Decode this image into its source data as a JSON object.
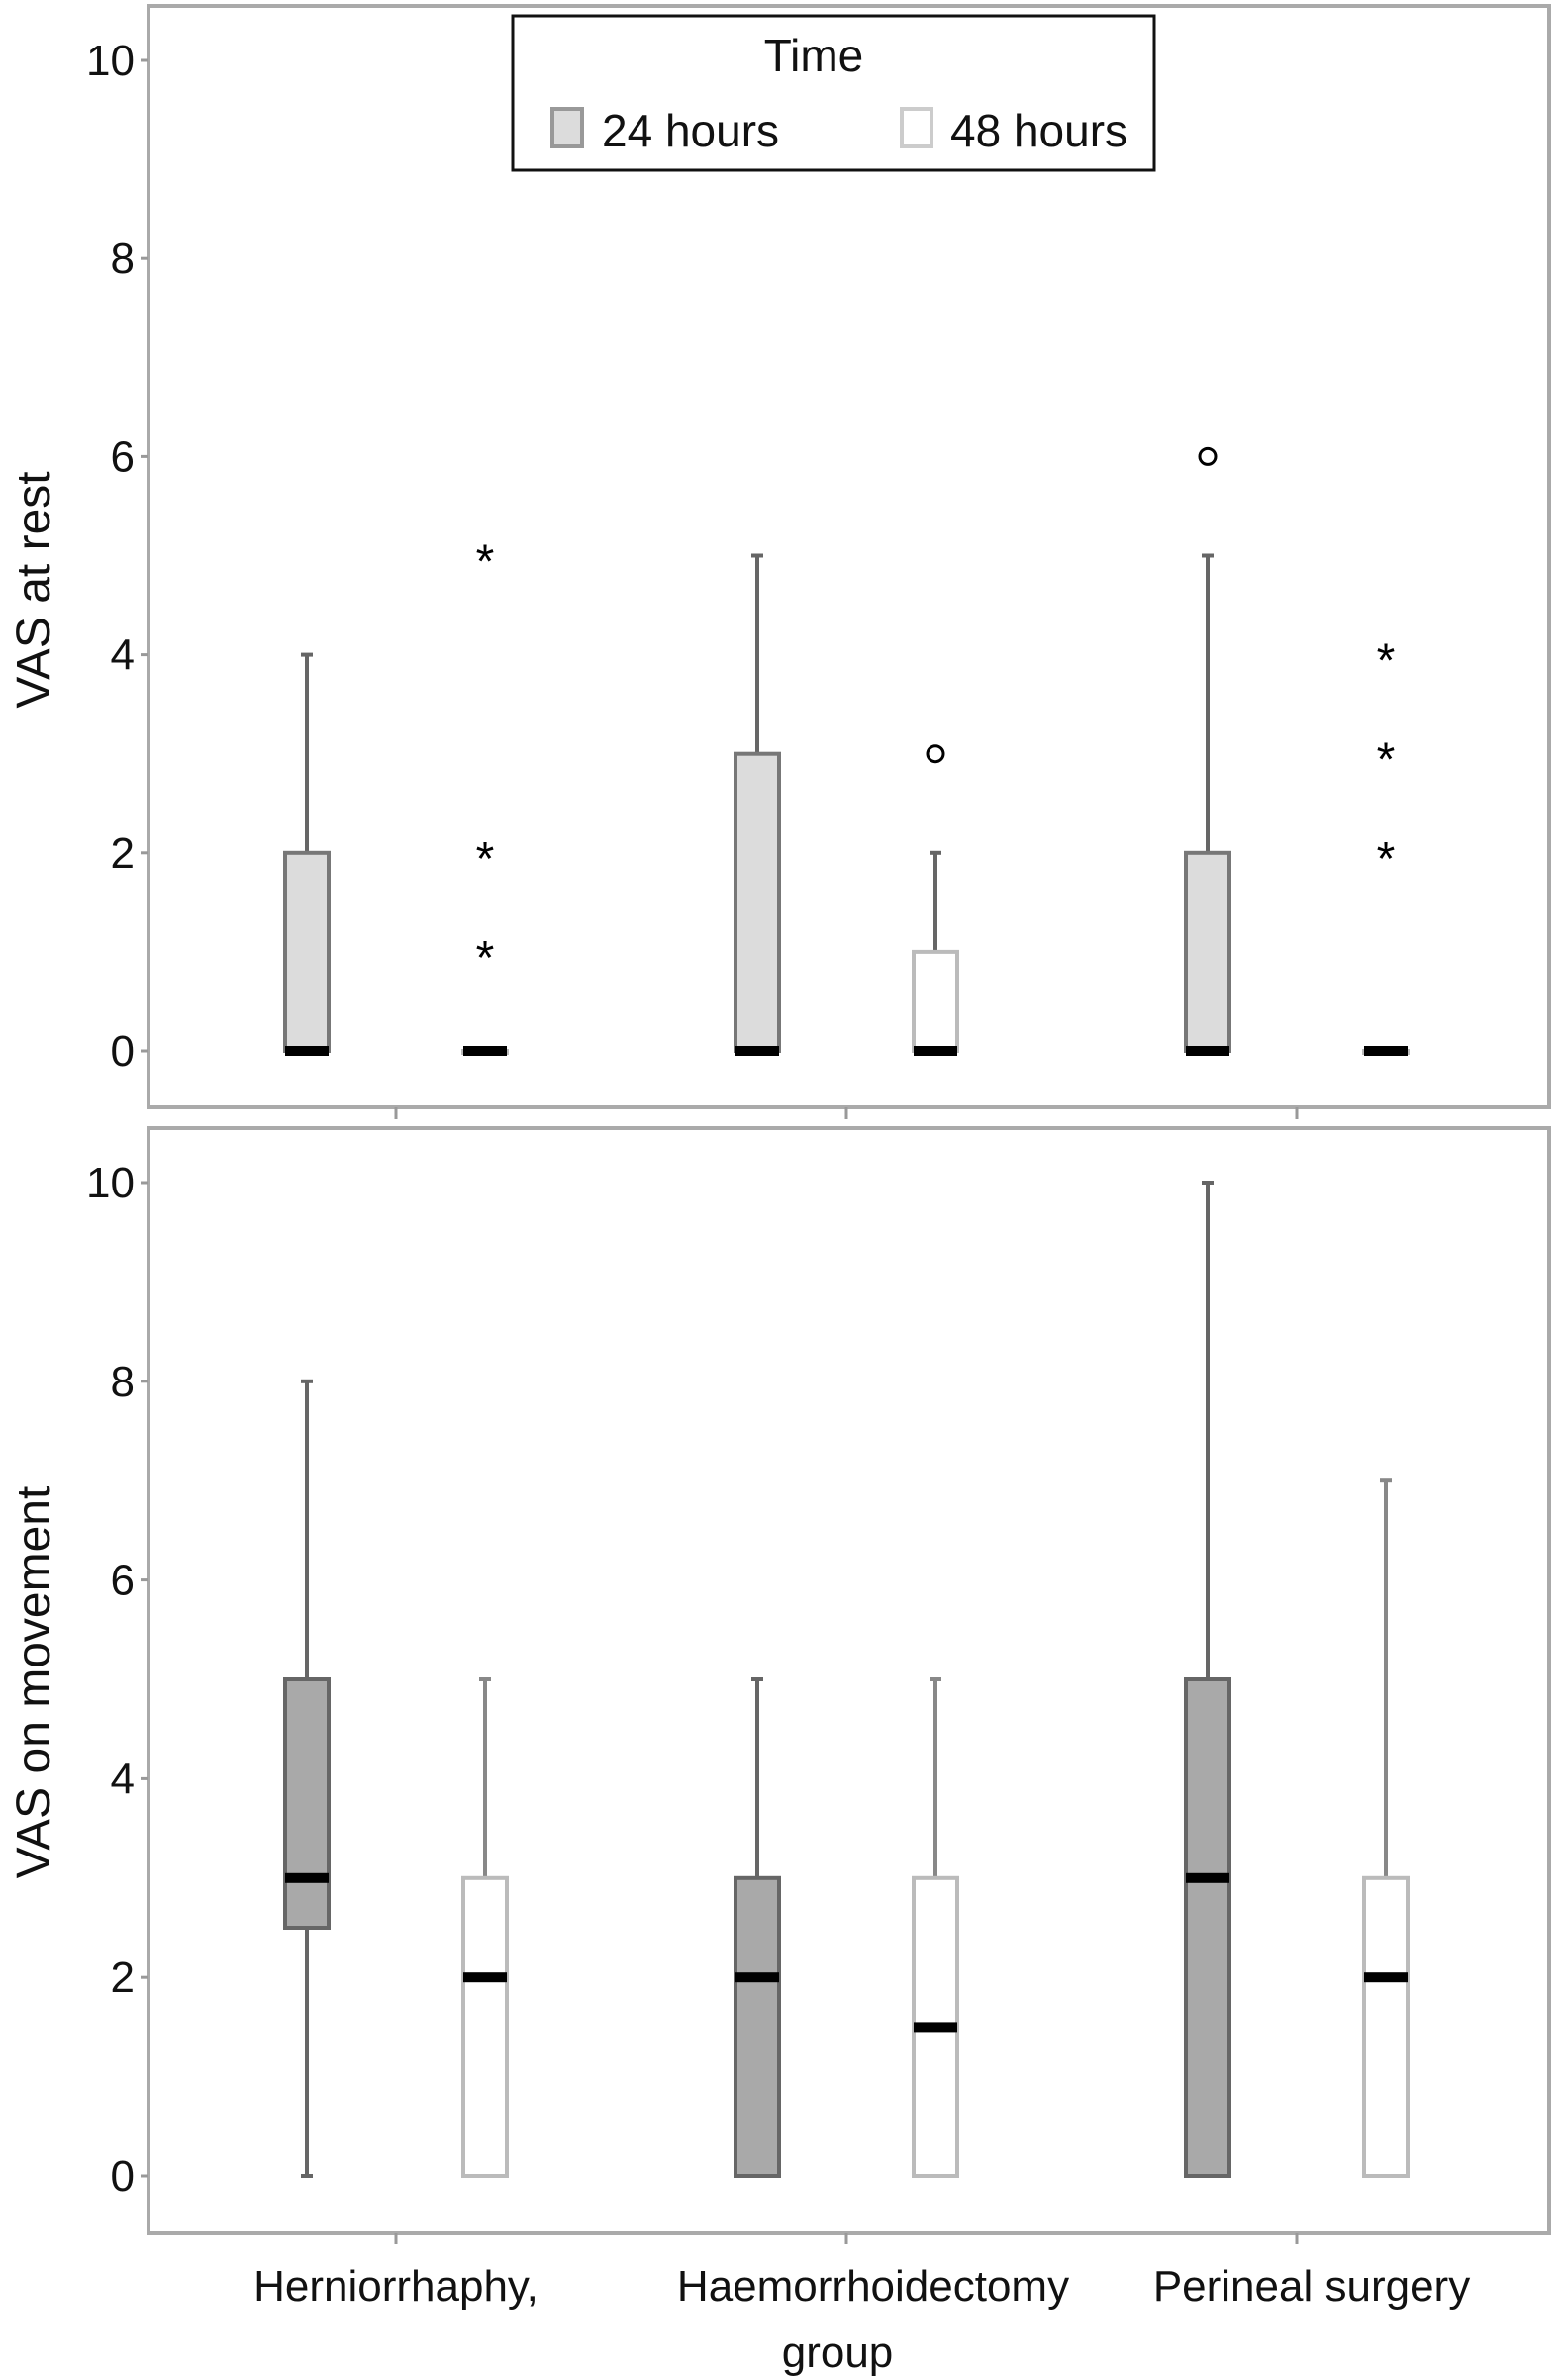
{
  "chart_data": [
    {
      "type": "box",
      "ylabel": "VAS at rest",
      "ylim": [
        -0.5,
        10.5
      ],
      "yticks": [
        "0",
        "2",
        "4",
        "6",
        "8",
        "10"
      ],
      "categories": [
        "Herniorrhaphy,",
        "Haemorrhoidectomy",
        "Perineal surgery"
      ],
      "legend": {
        "title": "Time",
        "placement": "top-center"
      },
      "series": [
        {
          "name": "24 hours",
          "color": "#dcdcdc",
          "boxes": [
            {
              "min": 0,
              "q1": 0,
              "median": 0,
              "q3": 2,
              "max": 4,
              "outliers": [],
              "extremes": []
            },
            {
              "min": 0,
              "q1": 0,
              "median": 0,
              "q3": 3,
              "max": 5,
              "outliers": [],
              "extremes": []
            },
            {
              "min": 0,
              "q1": 0,
              "median": 0,
              "q3": 2,
              "max": 5,
              "outliers": [
                6
              ],
              "extremes": []
            }
          ]
        },
        {
          "name": "48 hours",
          "color": "#ffffff",
          "boxes": [
            {
              "min": 0,
              "q1": 0,
              "median": 0,
              "q3": 0,
              "max": 0,
              "outliers": [],
              "extremes": [
                1,
                2,
                5
              ]
            },
            {
              "min": 0,
              "q1": 0,
              "median": 0,
              "q3": 1,
              "max": 2,
              "outliers": [
                3
              ],
              "extremes": []
            },
            {
              "min": 0,
              "q1": 0,
              "median": 0,
              "q3": 0,
              "max": 0,
              "outliers": [],
              "extremes": [
                2,
                3,
                4
              ]
            }
          ]
        }
      ]
    },
    {
      "type": "box",
      "ylabel": "VAS on movement",
      "xlabel": "group",
      "ylim": [
        -0.5,
        10.5
      ],
      "yticks": [
        "0",
        "2",
        "4",
        "6",
        "8",
        "10"
      ],
      "categories": [
        "Herniorrhaphy,",
        "Haemorrhoidectomy",
        "Perineal surgery"
      ],
      "series": [
        {
          "name": "24 hours",
          "color": "#a9a9a9",
          "boxes": [
            {
              "min": 0,
              "q1": 2.5,
              "median": 3,
              "q3": 5,
              "max": 8,
              "outliers": [],
              "extremes": []
            },
            {
              "min": 0,
              "q1": 0,
              "median": 2,
              "q3": 3,
              "max": 5,
              "outliers": [],
              "extremes": []
            },
            {
              "min": 0,
              "q1": 0,
              "median": 3,
              "q3": 5,
              "max": 10,
              "outliers": [],
              "extremes": []
            }
          ]
        },
        {
          "name": "48 hours",
          "color": "#ffffff",
          "boxes": [
            {
              "min": 0,
              "q1": 0,
              "median": 2,
              "q3": 3,
              "max": 5,
              "outliers": [],
              "extremes": []
            },
            {
              "min": 0,
              "q1": 0,
              "median": 1.5,
              "q3": 3,
              "max": 5,
              "outliers": [],
              "extremes": []
            },
            {
              "min": 0,
              "q1": 0,
              "median": 2,
              "q3": 3,
              "max": 7,
              "outliers": [],
              "extremes": []
            }
          ]
        }
      ]
    }
  ]
}
